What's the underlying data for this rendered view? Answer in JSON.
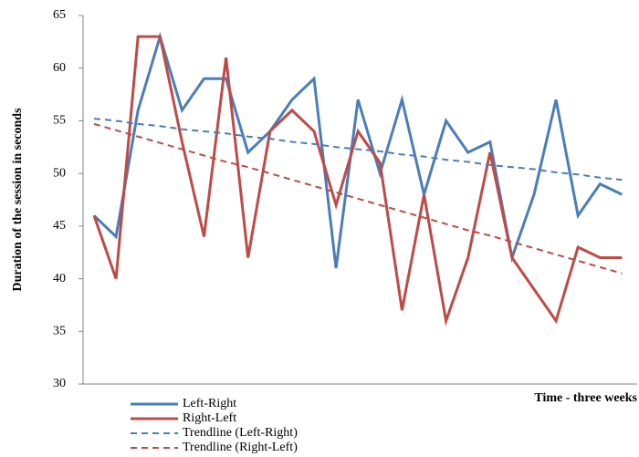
{
  "chart_data": {
    "type": "line",
    "y_label": "Duration of the session in seconds",
    "x_label": "Time - three weeks",
    "categories": [
      null,
      null,
      null,
      null,
      null,
      null,
      null,
      null,
      null,
      null,
      null,
      null,
      null,
      null,
      null,
      null,
      null,
      null,
      null,
      null,
      null,
      null,
      null,
      null,
      null
    ],
    "ylim": [
      30,
      65
    ],
    "yticks": [
      30,
      35,
      40,
      45,
      50,
      55,
      60,
      65
    ],
    "grid": false,
    "series": [
      {
        "name": "Left-Right",
        "color": "#4a7ebb",
        "style": "solid",
        "values": [
          46,
          44,
          56,
          63,
          56,
          59,
          59,
          52,
          54,
          57,
          59,
          41,
          57,
          50,
          57,
          48,
          55,
          52,
          53,
          42,
          48,
          57,
          46,
          49,
          48
        ]
      },
      {
        "name": "Right-Left",
        "color": "#be4b48",
        "style": "solid",
        "values": [
          46,
          40,
          63,
          63,
          53,
          44,
          61,
          42,
          54,
          56,
          54,
          47,
          54,
          51,
          37,
          48,
          36,
          42,
          52,
          42,
          39,
          36,
          43,
          42,
          42
        ]
      },
      {
        "name": "Trendline (Left-Right)",
        "color": "#4a7ebb",
        "style": "dashed",
        "values": [
          55.2,
          55.0,
          54.7,
          54.5,
          54.2,
          54.0,
          53.8,
          53.5,
          53.3,
          53.0,
          52.8,
          52.5,
          52.3,
          52.1,
          51.8,
          51.6,
          51.3,
          51.1,
          50.8,
          50.6,
          50.4,
          50.1,
          49.9,
          49.6,
          49.4
        ]
      },
      {
        "name": "Trendline (Right-Left)",
        "color": "#be4b48",
        "style": "dashed",
        "values": [
          54.7,
          54.1,
          53.5,
          52.9,
          52.3,
          51.7,
          51.1,
          50.6,
          50.0,
          49.4,
          48.8,
          48.2,
          47.6,
          47.0,
          46.4,
          45.8,
          45.2,
          44.6,
          44.1,
          43.5,
          42.9,
          42.3,
          41.7,
          41.1,
          40.5
        ]
      }
    ]
  }
}
